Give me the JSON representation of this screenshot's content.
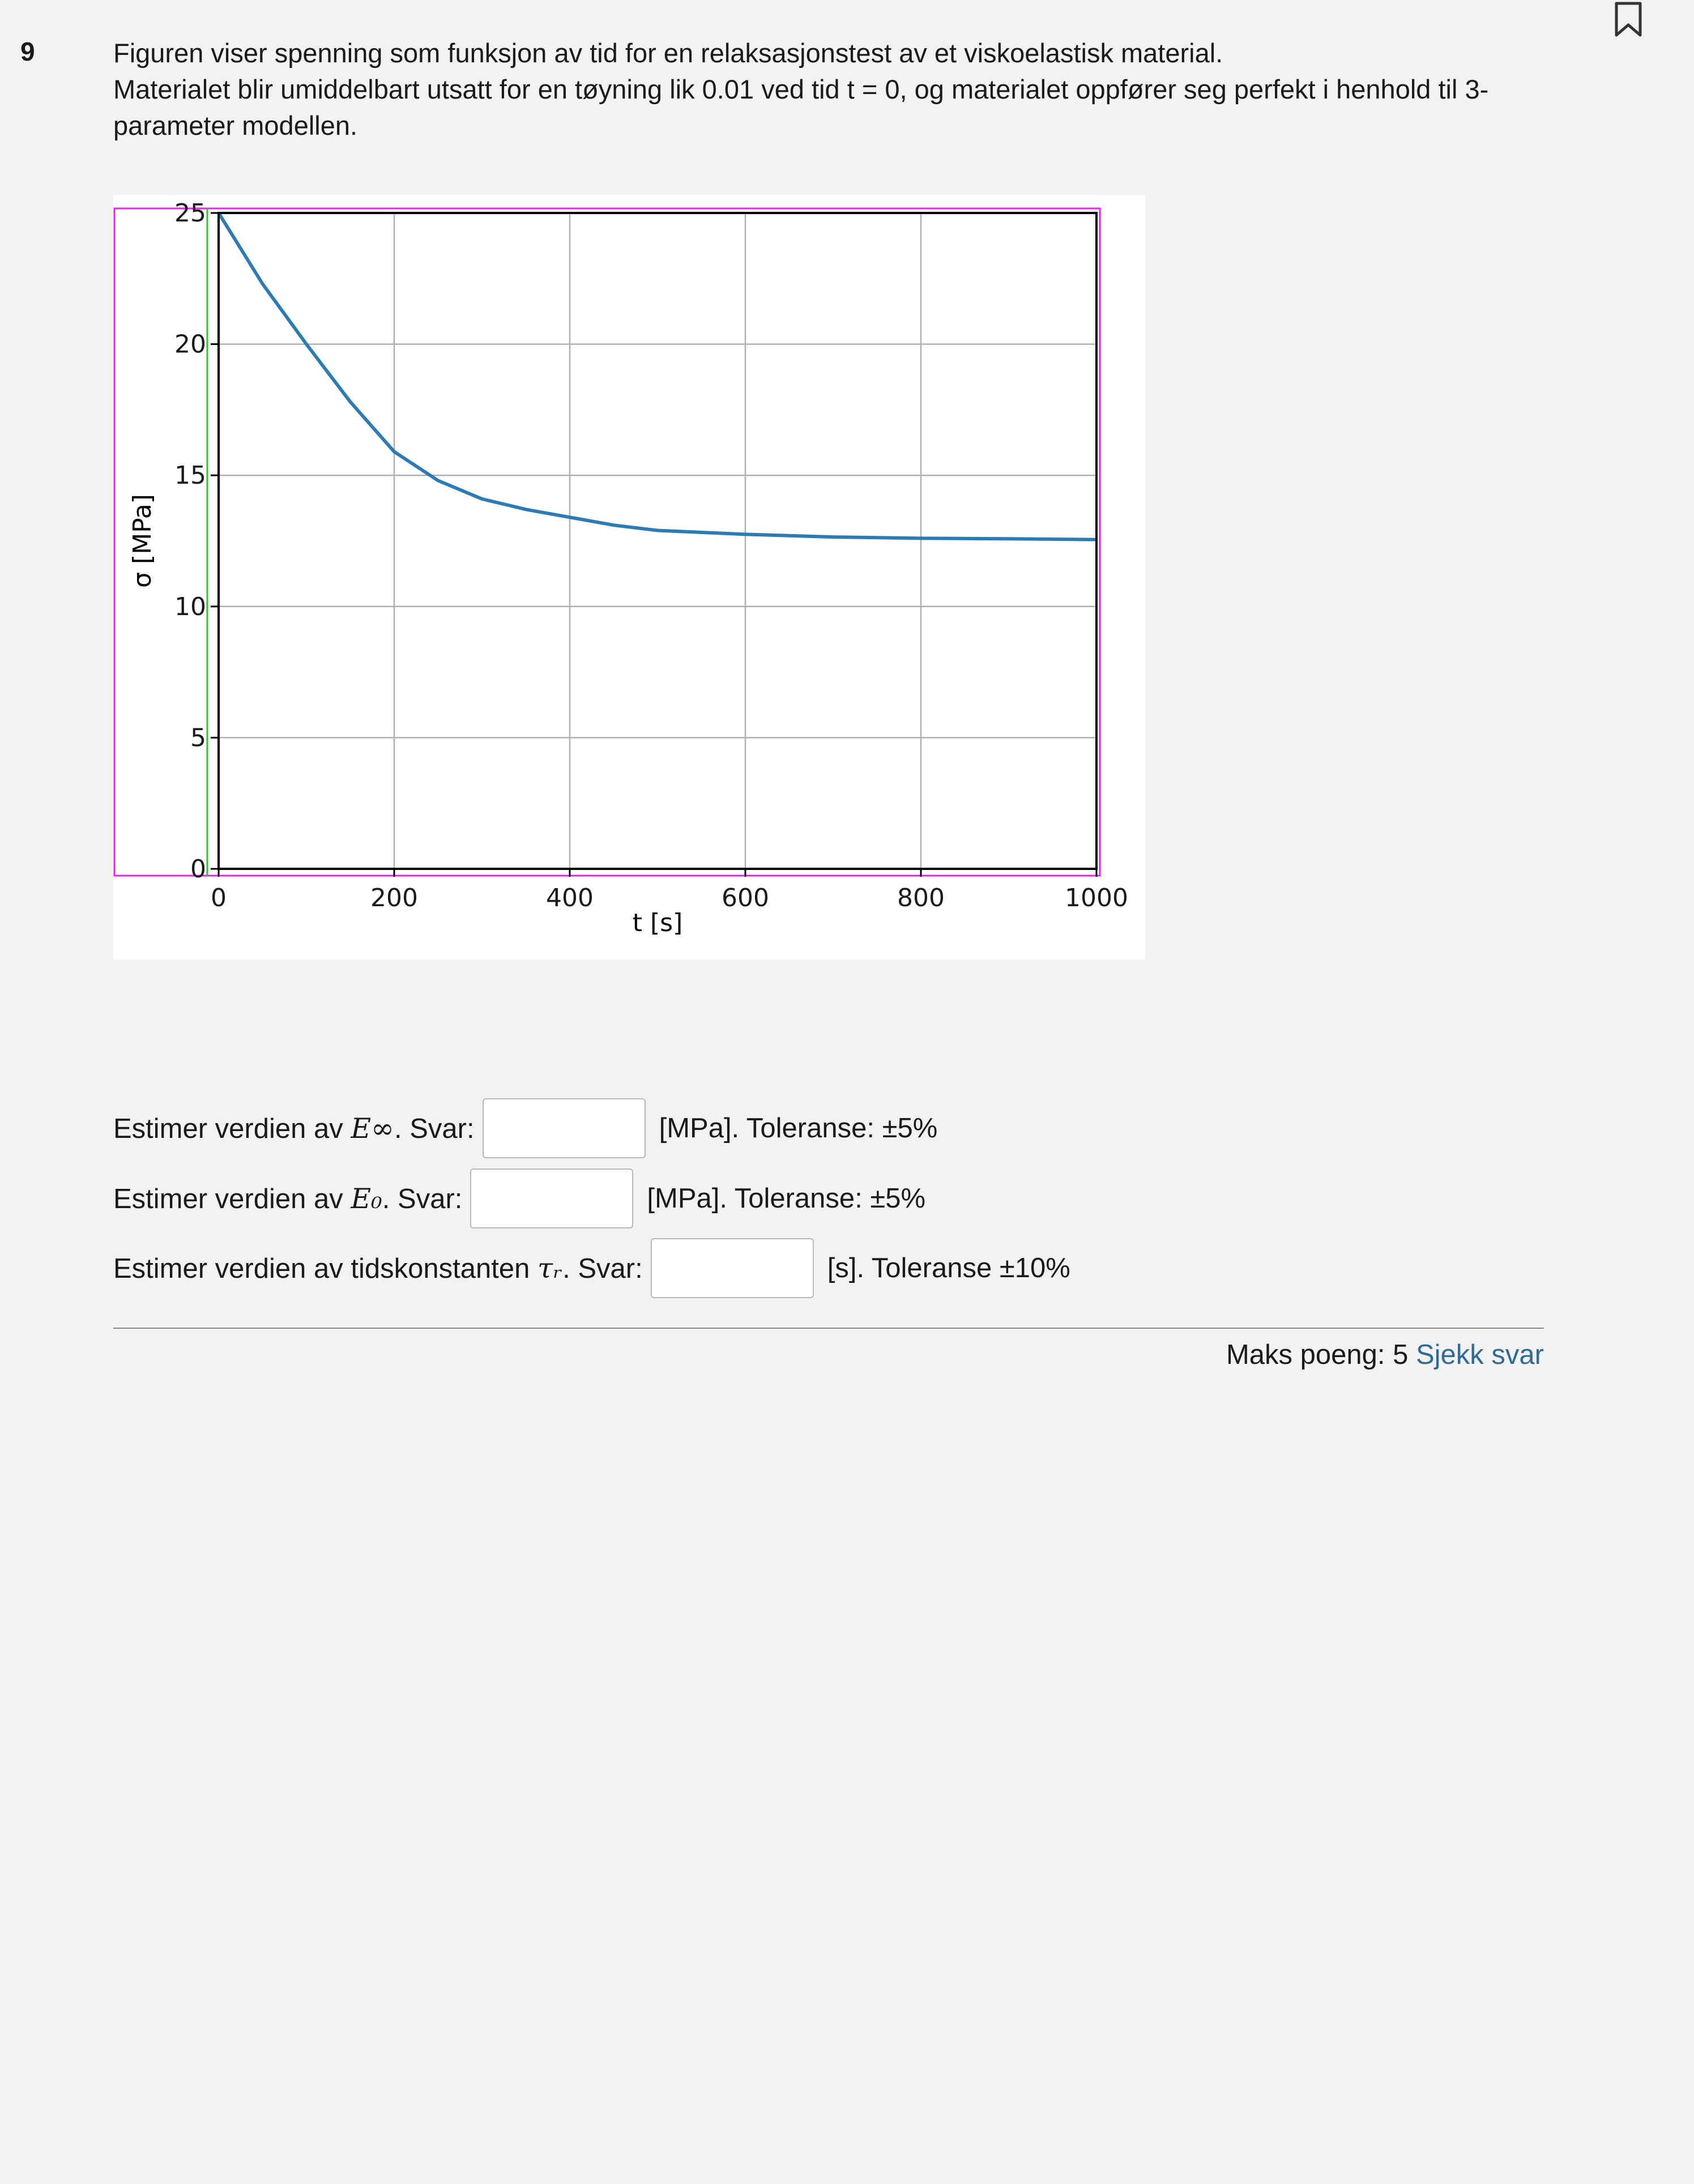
{
  "question": {
    "number": "9",
    "line1": "Figuren viser spenning som funksjon av tid for en relaksasjonstest av et viskoelastisk material.",
    "line2": "Materialet blir umiddelbart utsatt for en tøyning lik 0.01 ved tid t = 0, og materialet oppfører seg perfekt i henhold til 3-parameter modellen."
  },
  "chart_data": {
    "type": "line",
    "xlabel": "t [s]",
    "ylabel": "σ [MPa]",
    "xlim": [
      0,
      1000
    ],
    "ylim": [
      0,
      25
    ],
    "xticks": [
      "0",
      "200",
      "400",
      "600",
      "800",
      "1000"
    ],
    "yticks": [
      "0",
      "5",
      "10",
      "15",
      "20",
      "25"
    ],
    "grid": true,
    "color": "#2d7bb5",
    "series": [
      {
        "x": [
          0,
          50,
          100,
          150,
          200,
          250,
          300,
          350,
          400,
          450,
          500,
          600,
          700,
          800,
          900,
          1000
        ],
        "values": [
          25.0,
          22.3,
          20.0,
          17.8,
          15.9,
          14.8,
          14.1,
          13.7,
          13.4,
          13.1,
          12.9,
          12.75,
          12.65,
          12.6,
          12.58,
          12.55
        ]
      }
    ]
  },
  "answers": [
    {
      "prefix": "Estimer verdien av ",
      "symbol": "E∞",
      "sep": ". ",
      "svar": "Svar:",
      "unit": "[MPa]. Toleranse: ±5%",
      "value": ""
    },
    {
      "prefix": "Estimer verdien av ",
      "symbol": "E₀",
      "sep": ". ",
      "svar": "Svar:",
      "unit": "[MPa]. Toleranse: ±5%",
      "value": ""
    },
    {
      "prefix": "Estimer verdien av tidskonstanten ",
      "symbol": "τᵣ",
      "sep": ". ",
      "svar": "Svar:",
      "unit": "[s]. Toleranse ±10%",
      "value": ""
    }
  ],
  "footer": {
    "maks": "Maks poeng: 5",
    "link": "Sjekk svar"
  },
  "icons": {
    "bookmark": "bookmark-icon"
  }
}
